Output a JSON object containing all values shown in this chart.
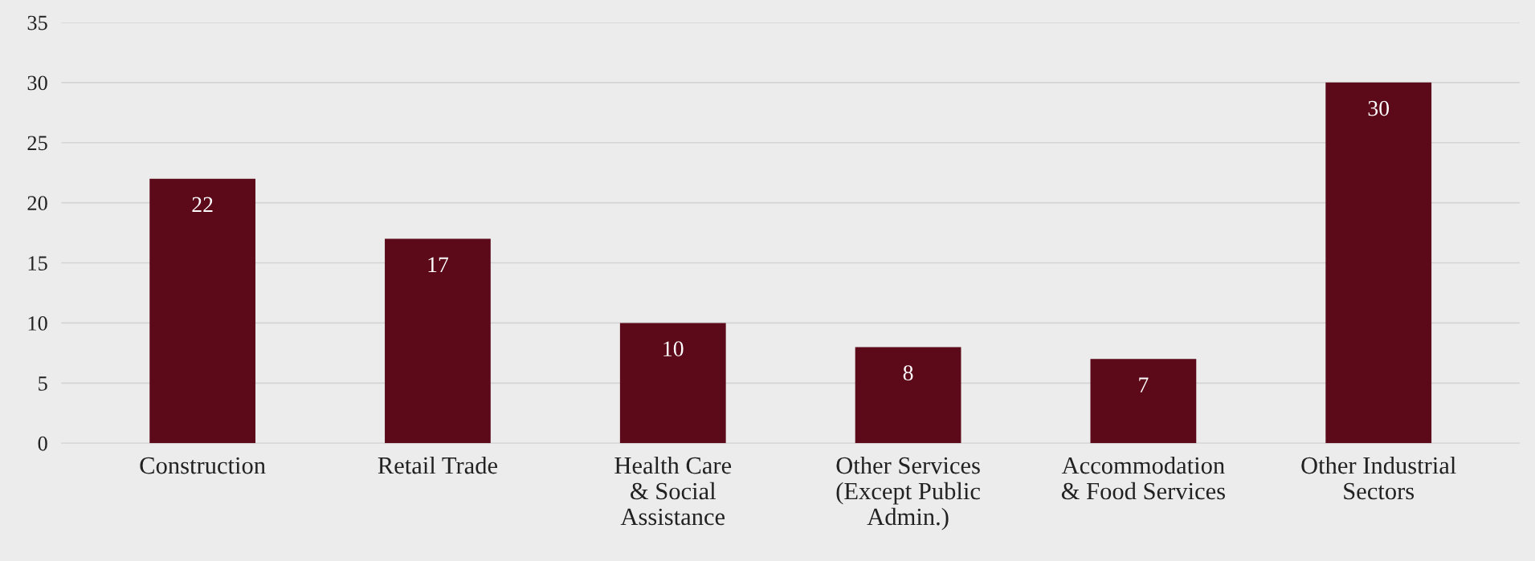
{
  "chart_data": {
    "type": "bar",
    "categories": [
      "Construction",
      "Retail Trade",
      "Health Care\n& Social\nAssistance",
      "Other Services\n(Except Public\nAdmin.)",
      "Accommodation\n& Food Services",
      "Other Industrial\nSectors"
    ],
    "values": [
      22,
      17,
      10,
      8,
      7,
      30
    ],
    "color": "#5c0a1a",
    "ylim": [
      0,
      35
    ],
    "yticks": [
      0,
      5,
      10,
      15,
      20,
      25,
      30,
      35
    ],
    "grid": "y",
    "data_labels": true
  }
}
